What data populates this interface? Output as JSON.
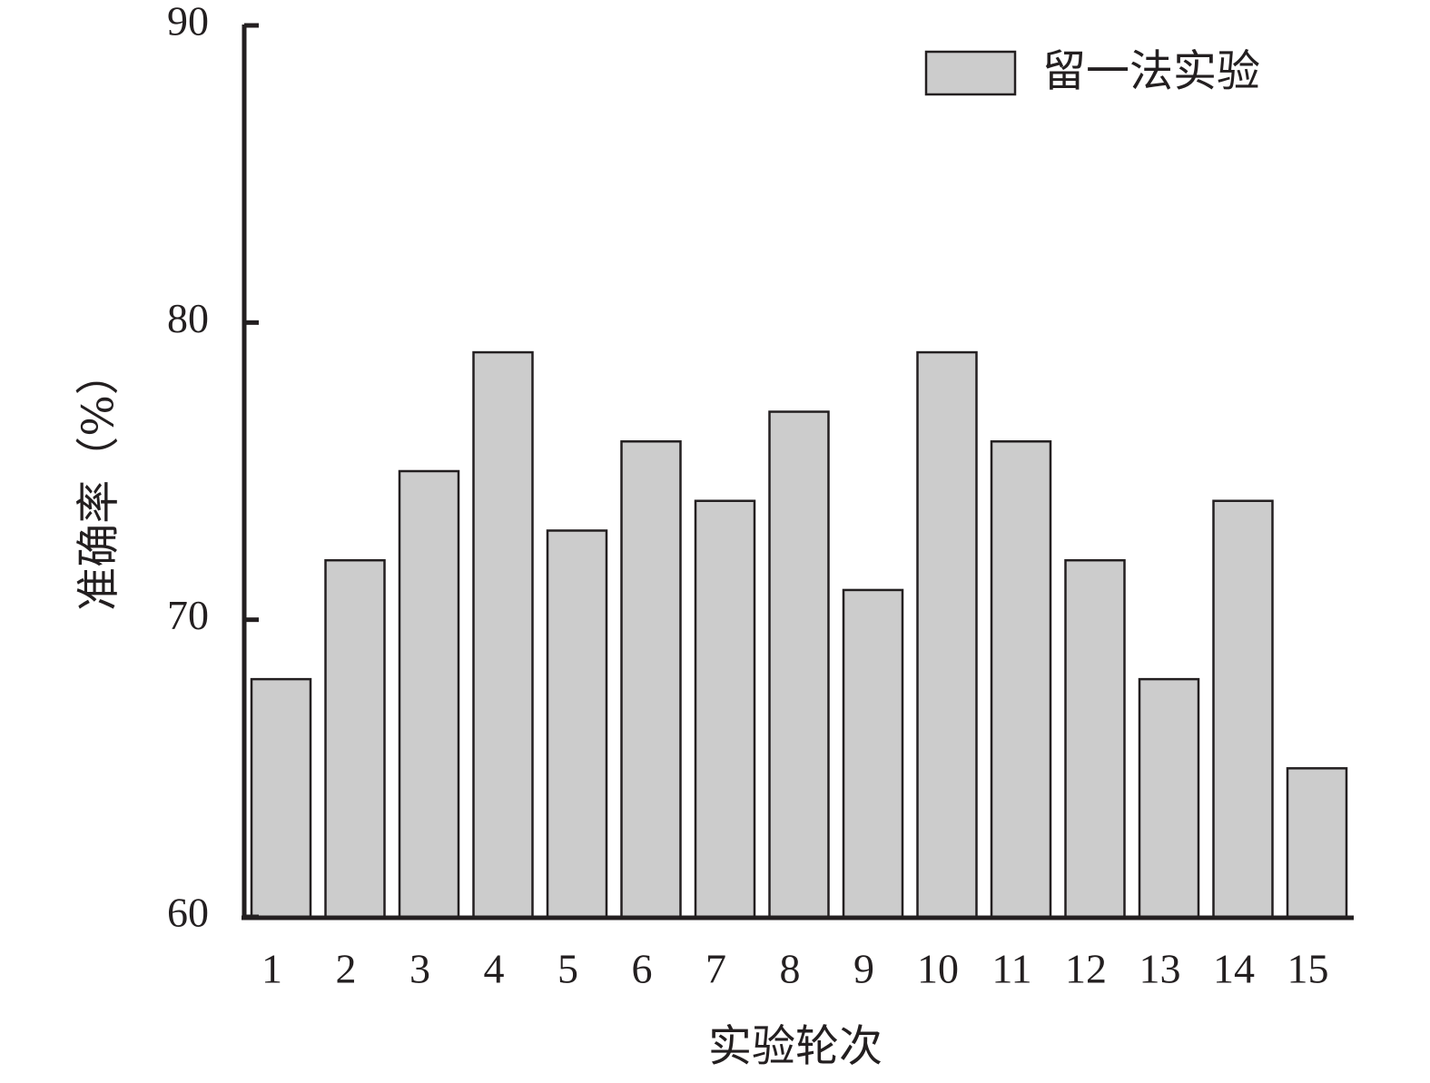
{
  "chart_data": {
    "type": "bar",
    "categories": [
      "1",
      "2",
      "3",
      "4",
      "5",
      "6",
      "7",
      "8",
      "9",
      "10",
      "11",
      "12",
      "13",
      "14",
      "15"
    ],
    "series": [
      {
        "name": "留一法实验",
        "values": [
          68,
          72,
          75,
          79,
          73,
          76,
          74,
          77,
          71,
          79,
          76,
          72,
          68,
          74,
          65
        ],
        "color": "#cccccc"
      }
    ],
    "xlabel": "实验轮次",
    "ylabel": "准确率（%）",
    "ylim": [
      60,
      90
    ],
    "yticks": [
      "60",
      "70",
      "80",
      "90"
    ],
    "legend_position": "top-right",
    "grid": false
  }
}
